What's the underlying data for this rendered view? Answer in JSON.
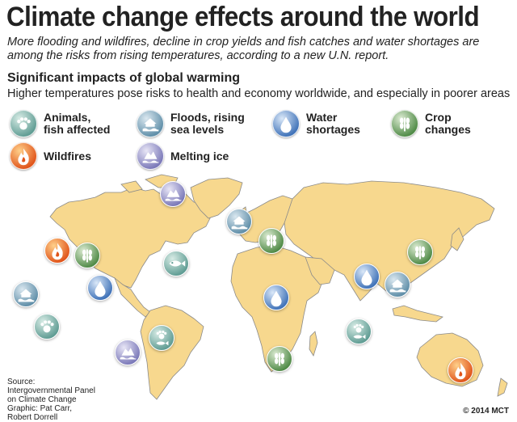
{
  "header": {
    "title": "Climate change effects around the world",
    "subtitle": "More flooding and wildfires, decline in crop yields and fish catches and water shortages are among the risks from rising temperatures, according to a new U.N. report."
  },
  "section": {
    "heading": "Significant impacts of global warming",
    "description": "Higher temperatures pose risks to health and economy worldwide, and especially in poorer areas"
  },
  "legend": {
    "animals": [
      "Animals,",
      "fish affected"
    ],
    "floods": [
      "Floods, rising",
      "sea levels"
    ],
    "water": [
      "Water",
      "shortages"
    ],
    "crop": [
      "Crop",
      "changes"
    ],
    "wildfires": [
      "Wildfires"
    ],
    "ice": [
      "Melting ice"
    ]
  },
  "colors": {
    "land": "#f7d88e",
    "border": "#8a8a8a",
    "animals": "#5f9c93",
    "floods": "#5f8ea8",
    "water": "#3f72b8",
    "crop": "#4f8a46",
    "wildfires": "#e0541a",
    "ice": "#7a78b8"
  },
  "source": [
    "Source:",
    "Intergovernmental Panel",
    "on Climate Change",
    "Graphic: Pat Carr,",
    "Robert Dorrell"
  ],
  "credit": "© 2014 MCT"
}
